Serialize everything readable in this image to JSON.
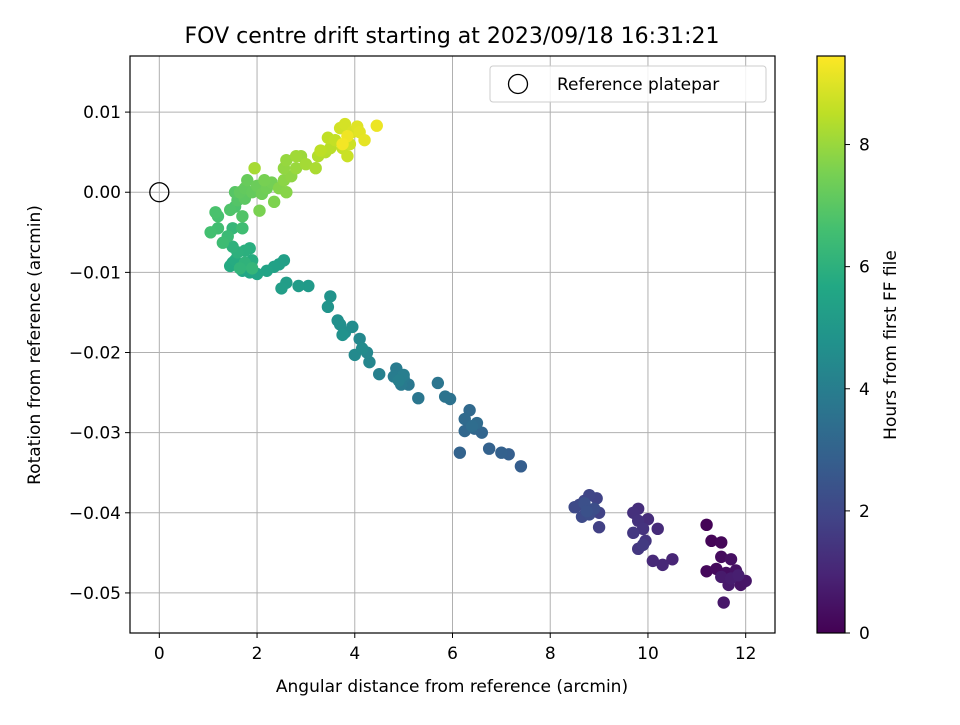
{
  "chart_data": {
    "type": "scatter",
    "title": "FOV centre drift starting at 2023/09/18 16:31:21",
    "xlabel": "Angular distance from reference (arcmin)",
    "ylabel": "Rotation from reference (arcmin)",
    "xlim": [
      -0.6,
      12.6
    ],
    "ylim": [
      -0.055,
      0.017
    ],
    "x_ticks": [
      0,
      2,
      4,
      6,
      8,
      10,
      12
    ],
    "x_tick_labels": [
      "0",
      "2",
      "4",
      "6",
      "8",
      "10",
      "12"
    ],
    "y_ticks": [
      0.01,
      0.0,
      -0.01,
      -0.02,
      -0.03,
      -0.04,
      -0.05
    ],
    "y_tick_labels": [
      "0.01",
      "0.00",
      "−0.01",
      "−0.02",
      "−0.03",
      "−0.04",
      "−0.05"
    ],
    "grid": true,
    "legend": {
      "placement": "top-right",
      "entries": [
        {
          "label": "Reference platepar",
          "marker": "open-circle",
          "x": 0,
          "y": 0
        }
      ]
    },
    "colorbar": {
      "label": "Hours from first FF file",
      "colormap": "viridis",
      "range": [
        0,
        9.45
      ],
      "ticks": [
        0,
        2,
        4,
        6,
        8
      ],
      "tick_labels": [
        "0",
        "2",
        "4",
        "6",
        "8"
      ]
    },
    "series": [
      {
        "name": "Reference platepar",
        "points": [
          [
            0,
            0
          ]
        ]
      },
      {
        "points": [
          [
            11.2,
            -0.0415,
            0.05
          ],
          [
            11.3,
            -0.0435,
            0.1
          ],
          [
            11.5,
            -0.0437,
            0.15
          ],
          [
            11.2,
            -0.0473,
            0.2
          ],
          [
            11.4,
            -0.047,
            0.25
          ],
          [
            11.5,
            -0.0455,
            0.3
          ],
          [
            11.6,
            -0.0475,
            0.35
          ],
          [
            11.7,
            -0.0458,
            0.4
          ],
          [
            11.8,
            -0.0472,
            0.45
          ],
          [
            11.9,
            -0.049,
            0.5
          ],
          [
            12.0,
            -0.0485,
            0.55
          ],
          [
            11.55,
            -0.0512,
            0.6
          ],
          [
            11.65,
            -0.049,
            0.65
          ],
          [
            11.5,
            -0.048,
            0.7
          ],
          [
            11.7,
            -0.0482,
            0.75
          ],
          [
            11.85,
            -0.0478,
            0.8
          ],
          [
            10.5,
            -0.0458,
            1.0
          ],
          [
            10.3,
            -0.0465,
            1.05
          ],
          [
            10.1,
            -0.046,
            1.1
          ],
          [
            10.2,
            -0.042,
            1.15
          ],
          [
            10.0,
            -0.0408,
            1.2
          ],
          [
            9.8,
            -0.0395,
            1.25
          ],
          [
            9.7,
            -0.04,
            1.3
          ],
          [
            9.8,
            -0.041,
            1.35
          ],
          [
            9.9,
            -0.042,
            1.4
          ],
          [
            9.95,
            -0.0435,
            1.45
          ],
          [
            9.8,
            -0.0445,
            1.5
          ],
          [
            9.7,
            -0.0425,
            1.55
          ],
          [
            9.9,
            -0.044,
            1.6
          ],
          [
            9.0,
            -0.0418,
            1.8
          ],
          [
            9.0,
            -0.04,
            1.85
          ],
          [
            8.95,
            -0.0382,
            1.9
          ],
          [
            8.8,
            -0.0378,
            1.95
          ],
          [
            8.7,
            -0.0385,
            2.0
          ],
          [
            8.6,
            -0.039,
            2.05
          ],
          [
            8.5,
            -0.0393,
            2.1
          ],
          [
            8.65,
            -0.0405,
            2.15
          ],
          [
            8.8,
            -0.0402,
            2.2
          ],
          [
            8.9,
            -0.0395,
            2.25
          ],
          [
            8.7,
            -0.0388,
            2.3
          ],
          [
            8.75,
            -0.0398,
            2.35
          ],
          [
            7.4,
            -0.0342,
            2.8
          ],
          [
            7.15,
            -0.0327,
            2.85
          ],
          [
            7.0,
            -0.0325,
            2.9
          ],
          [
            6.75,
            -0.032,
            2.95
          ],
          [
            6.15,
            -0.0325,
            3.0
          ],
          [
            6.6,
            -0.03,
            3.05
          ],
          [
            6.45,
            -0.0295,
            3.1
          ],
          [
            6.25,
            -0.0298,
            3.15
          ],
          [
            6.35,
            -0.0272,
            3.2
          ],
          [
            6.25,
            -0.0283,
            3.25
          ],
          [
            6.5,
            -0.0288,
            3.3
          ],
          [
            6.4,
            -0.0292,
            3.35
          ],
          [
            5.95,
            -0.0258,
            3.55
          ],
          [
            5.85,
            -0.0255,
            3.6
          ],
          [
            5.7,
            -0.0238,
            3.65
          ],
          [
            5.3,
            -0.0257,
            3.7
          ],
          [
            5.1,
            -0.024,
            3.75
          ],
          [
            5.0,
            -0.0232,
            3.8
          ],
          [
            4.95,
            -0.024,
            3.85
          ],
          [
            4.85,
            -0.022,
            3.9
          ],
          [
            4.8,
            -0.023,
            3.95
          ],
          [
            5.0,
            -0.0228,
            4.0
          ],
          [
            4.9,
            -0.0235,
            4.05
          ],
          [
            4.5,
            -0.0227,
            4.1
          ],
          [
            4.3,
            -0.0212,
            4.3
          ],
          [
            4.25,
            -0.02,
            4.35
          ],
          [
            4.1,
            -0.0183,
            4.4
          ],
          [
            4.0,
            -0.0203,
            4.45
          ],
          [
            4.15,
            -0.0195,
            4.5
          ],
          [
            3.95,
            -0.0168,
            4.55
          ],
          [
            3.8,
            -0.0175,
            4.6
          ],
          [
            3.7,
            -0.0165,
            4.65
          ],
          [
            3.65,
            -0.016,
            4.7
          ],
          [
            3.75,
            -0.0178,
            4.75
          ],
          [
            3.5,
            -0.013,
            4.8
          ],
          [
            3.45,
            -0.0143,
            4.85
          ],
          [
            3.05,
            -0.0117,
            5.1
          ],
          [
            2.85,
            -0.0117,
            5.15
          ],
          [
            2.6,
            -0.0113,
            5.2
          ],
          [
            2.5,
            -0.012,
            5.25
          ],
          [
            2.55,
            -0.0085,
            5.3
          ],
          [
            2.45,
            -0.009,
            5.35
          ],
          [
            2.35,
            -0.0093,
            5.4
          ],
          [
            2.2,
            -0.0098,
            5.45
          ],
          [
            2.0,
            -0.0102,
            5.5
          ],
          [
            1.85,
            -0.01,
            5.55
          ],
          [
            1.7,
            -0.0098,
            5.6
          ],
          [
            1.8,
            -0.009,
            5.65
          ],
          [
            1.5,
            -0.0088,
            5.7
          ],
          [
            1.45,
            -0.0092,
            5.75
          ],
          [
            1.55,
            -0.0085,
            5.8
          ],
          [
            1.9,
            -0.0085,
            5.85
          ],
          [
            1.85,
            -0.007,
            5.9
          ],
          [
            1.75,
            -0.0073,
            5.95
          ],
          [
            1.6,
            -0.0075,
            6.0
          ],
          [
            1.5,
            -0.0068,
            6.05
          ],
          [
            1.75,
            -0.0088,
            6.1
          ],
          [
            1.65,
            -0.0095,
            6.15
          ],
          [
            1.9,
            -0.0095,
            6.2
          ],
          [
            1.5,
            -0.0045,
            6.25
          ],
          [
            1.4,
            -0.0055,
            6.4
          ],
          [
            1.3,
            -0.0063,
            6.45
          ],
          [
            1.7,
            -0.0045,
            6.5
          ],
          [
            1.2,
            -0.0045,
            6.55
          ],
          [
            1.05,
            -0.005,
            6.6
          ],
          [
            1.2,
            -0.003,
            6.65
          ],
          [
            1.15,
            -0.0025,
            6.7
          ],
          [
            1.55,
            -0.0018,
            6.75
          ],
          [
            1.45,
            -0.0022,
            6.8
          ],
          [
            1.7,
            -0.003,
            6.85
          ],
          [
            1.6,
            -0.001,
            6.9
          ],
          [
            1.55,
            0.0,
            6.95
          ],
          [
            1.75,
            -0.0008,
            7.05
          ],
          [
            1.65,
            0.0,
            7.1
          ],
          [
            1.75,
            0.0005,
            7.15
          ],
          [
            1.9,
            0.0,
            7.2
          ],
          [
            1.8,
            0.0015,
            7.25
          ],
          [
            2.0,
            0.0008,
            7.3
          ],
          [
            2.1,
            -0.0002,
            7.35
          ],
          [
            2.2,
            0.0005,
            7.4
          ],
          [
            2.3,
            0.0012,
            7.45
          ],
          [
            2.15,
            0.0015,
            7.5
          ],
          [
            2.05,
            -0.0023,
            7.55
          ],
          [
            2.35,
            -0.0012,
            7.6
          ],
          [
            2.45,
            0.0005,
            7.7
          ],
          [
            2.6,
            0.0,
            7.75
          ],
          [
            2.55,
            0.0015,
            7.8
          ],
          [
            2.7,
            0.002,
            7.85
          ],
          [
            2.55,
            0.003,
            7.9
          ],
          [
            2.6,
            0.004,
            7.95
          ],
          [
            2.8,
            0.003,
            8.0
          ],
          [
            2.9,
            0.0045,
            8.05
          ],
          [
            2.8,
            0.0045,
            8.1
          ],
          [
            3.0,
            0.0035,
            8.15
          ],
          [
            1.95,
            0.003,
            8.2
          ],
          [
            3.2,
            0.003,
            8.25
          ],
          [
            3.25,
            0.0045,
            8.35
          ],
          [
            3.4,
            0.005,
            8.4
          ],
          [
            3.5,
            0.0055,
            8.45
          ],
          [
            3.3,
            0.0052,
            8.5
          ],
          [
            3.45,
            0.0068,
            8.55
          ],
          [
            3.6,
            0.0065,
            8.6
          ],
          [
            3.75,
            0.0055,
            8.65
          ],
          [
            3.85,
            0.0045,
            8.7
          ],
          [
            3.9,
            0.006,
            8.75
          ],
          [
            3.7,
            0.008,
            8.8
          ],
          [
            3.8,
            0.0085,
            8.85
          ],
          [
            3.95,
            0.0075,
            8.9
          ],
          [
            4.05,
            0.0082,
            9.0
          ],
          [
            4.1,
            0.0075,
            9.05
          ],
          [
            4.2,
            0.0065,
            9.1
          ],
          [
            4.45,
            0.0083,
            9.2
          ],
          [
            3.85,
            0.007,
            9.25
          ],
          [
            3.75,
            0.006,
            9.3
          ]
        ]
      }
    ]
  }
}
